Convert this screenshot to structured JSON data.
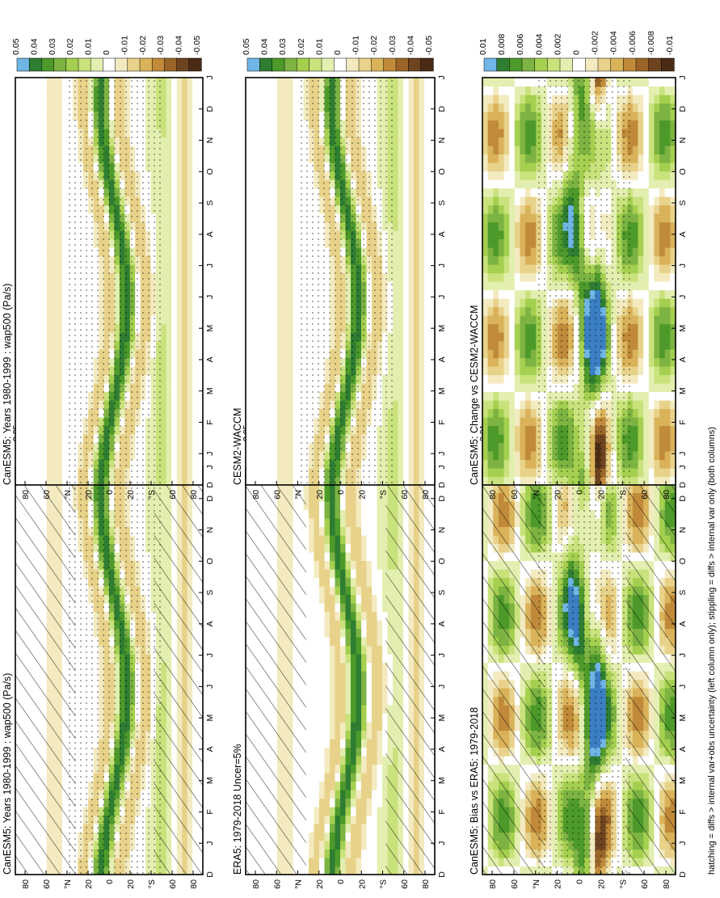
{
  "figure": {
    "footnote": "hatching = diffs > internal var+obs uncertainty (left column only); stippling = diffs > internal var only (both columns)"
  },
  "chart_data": [
    {
      "type": "heatmap",
      "id": "p1",
      "title": "CanESM5: Years 1980-1999 : wap500 (Pa/s)",
      "xlabel": "",
      "ylabel": "",
      "x_ticks": [
        "D",
        "J",
        "F",
        "M",
        "A",
        "M",
        "J",
        "J",
        "A",
        "S",
        "O",
        "N",
        "D",
        "J"
      ],
      "y_ticks": [
        "80",
        "60",
        "°N",
        "20",
        "0",
        "20",
        "°S",
        "60",
        "80"
      ],
      "colorbar_levels": [
        "0.05",
        "0.04",
        "0.03",
        "0.02",
        "0.01",
        "0",
        "-0.01",
        "-0.02",
        "-0.03",
        "-0.04",
        "-0.05"
      ],
      "variant": "wap",
      "hatch": true,
      "stipple": true
    },
    {
      "type": "heatmap",
      "id": "p2",
      "title": "CanESM5: Years 1980-1999 : wap500 (Pa/s)",
      "xlabel": "",
      "ylabel": "",
      "x_ticks": [
        "D",
        "J",
        "F",
        "M",
        "A",
        "M",
        "J",
        "J",
        "A",
        "S",
        "O",
        "N",
        "D",
        "J"
      ],
      "y_ticks": [
        "80",
        "60",
        "°N",
        "20",
        "0",
        "20",
        "°S",
        "60",
        "80"
      ],
      "colorbar_levels": [
        "0.05",
        "0.04",
        "0.03",
        "0.02",
        "0.01",
        "0",
        "-0.01",
        "-0.02",
        "-0.03",
        "-0.04",
        "-0.05"
      ],
      "variant": "wap",
      "hatch": false,
      "stipple": true
    },
    {
      "type": "heatmap",
      "id": "p3",
      "title": "ERA5: 1979-2018 Uncer=5%",
      "xlabel": "",
      "ylabel": "",
      "x_ticks": [
        "D",
        "J",
        "F",
        "M",
        "A",
        "M",
        "J",
        "J",
        "A",
        "S",
        "O",
        "N",
        "D",
        "J"
      ],
      "y_ticks": [
        "80",
        "60",
        "°N",
        "20",
        "0",
        "20",
        "°S",
        "60",
        "80"
      ],
      "colorbar_levels": [
        "0.05",
        "0.04",
        "0.03",
        "0.02",
        "0.01",
        "0",
        "-0.01",
        "-0.02",
        "-0.03",
        "-0.04",
        "-0.05"
      ],
      "variant": "wap",
      "hatch": true,
      "stipple": false
    },
    {
      "type": "heatmap",
      "id": "p4",
      "title": "CESM2-WACCM",
      "xlabel": "",
      "ylabel": "",
      "x_ticks": [
        "D",
        "J",
        "F",
        "M",
        "A",
        "M",
        "J",
        "J",
        "A",
        "S",
        "O",
        "N",
        "D",
        "J"
      ],
      "y_ticks": [
        "80",
        "60",
        "°N",
        "20",
        "0",
        "20",
        "°S",
        "60",
        "80"
      ],
      "colorbar_levels": [
        "0.05",
        "0.04",
        "0.03",
        "0.02",
        "0.01",
        "0",
        "-0.01",
        "-0.02",
        "-0.03",
        "-0.04",
        "-0.05"
      ],
      "variant": "wap",
      "hatch": false,
      "stipple": true
    },
    {
      "type": "heatmap",
      "id": "p5",
      "title": "CanESM5: Bias vs ERA5: 1979-2018",
      "xlabel": "",
      "ylabel": "",
      "x_ticks": [
        "D",
        "J",
        "F",
        "M",
        "A",
        "M",
        "J",
        "J",
        "A",
        "S",
        "O",
        "N",
        "D",
        "J"
      ],
      "y_ticks": [
        "80",
        "60",
        "°N",
        "20",
        "0",
        "20",
        "°S",
        "60",
        "80"
      ],
      "colorbar_levels": [
        "0.01",
        "0.008",
        "0.006",
        "0.004",
        "0.002",
        "0",
        "-0.002",
        "-0.004",
        "-0.006",
        "-0.008",
        "-0.01"
      ],
      "variant": "diff",
      "hatch": true,
      "stipple": true
    },
    {
      "type": "heatmap",
      "id": "p6",
      "title": "CanESM5: Change vs CESM2-WACCM",
      "xlabel": "",
      "ylabel": "",
      "x_ticks": [
        "D",
        "J",
        "F",
        "M",
        "A",
        "M",
        "J",
        "J",
        "A",
        "S",
        "O",
        "N",
        "D",
        "J"
      ],
      "y_ticks": [
        "80",
        "60",
        "°N",
        "20",
        "0",
        "20",
        "°S",
        "60",
        "80"
      ],
      "colorbar_levels": [
        "0.01",
        "0.008",
        "0.006",
        "0.004",
        "0.002",
        "0",
        "-0.002",
        "-0.004",
        "-0.006",
        "-0.008",
        "-0.01"
      ],
      "variant": "diff",
      "hatch": false,
      "stipple": true
    }
  ],
  "colors": {
    "palette": [
      "#3a7fc1",
      "#6fb6e6",
      "#2e7d32",
      "#4d9a2a",
      "#7cb342",
      "#a5cf4f",
      "#c9e27c",
      "#e3efb0",
      "#ffffff",
      "#f3eac0",
      "#e8d28a",
      "#d9b25a",
      "#c08a3a",
      "#9a6529",
      "#6e4420",
      "#4a2c16"
    ],
    "frame": "#000000"
  }
}
